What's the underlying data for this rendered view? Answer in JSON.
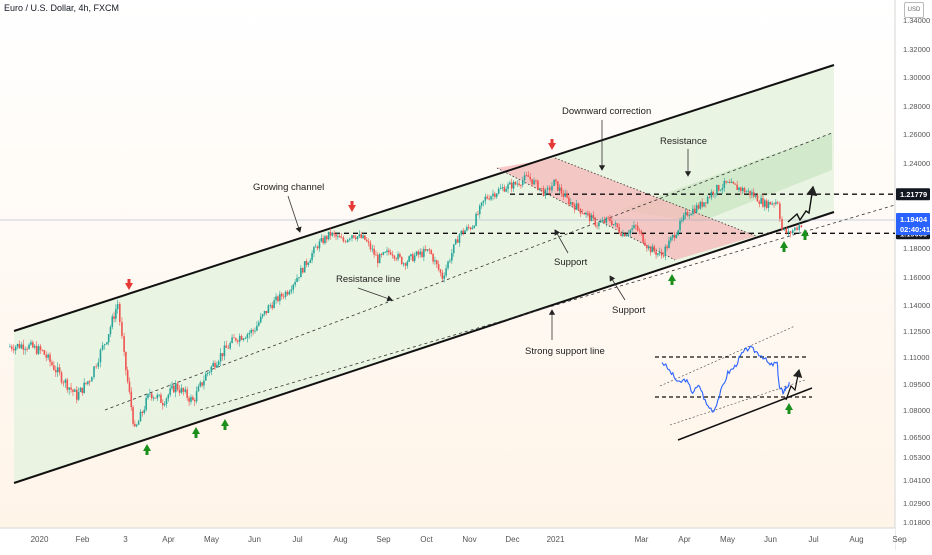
{
  "symbol_title": "Euro / U.S. Dollar, 4h, FXCM",
  "currency": "USD",
  "colors": {
    "candle_up": "#26a69a",
    "candle_down": "#ef5350",
    "channel_fill": "#e8f3e0",
    "correction_fill": "#f6b8b8",
    "upper_fill": "#cfe8c8",
    "arrow_down": "#e53935",
    "arrow_up": "#1b8f1b",
    "inset_line": "#2962ff",
    "price_badge": "#2962ff",
    "level_badge": "#131722"
  },
  "chart_data": {
    "type": "line",
    "title": "Euro / U.S. Dollar, 4h, FXCM",
    "ylim": [
      1.013,
      1.354
    ],
    "y_ticks": [
      "1.01800",
      "1.02900",
      "1.04100",
      "1.05300",
      "1.06500",
      "1.08000",
      "1.09500",
      "1.11000",
      "1.12500",
      "1.14000",
      "1.16000",
      "1.18000",
      "1.20000",
      "1.22000",
      "1.24000",
      "1.26000",
      "1.28000",
      "1.30000",
      "1.32000",
      "1.34000"
    ],
    "x_ticks": [
      "2020",
      "Feb",
      "3",
      "Apr",
      "May",
      "Jun",
      "Jul",
      "Aug",
      "Sep",
      "Oct",
      "Nov",
      "Dec",
      "2021",
      "Mar",
      "Apr",
      "May",
      "Jun",
      "Jul",
      "Aug",
      "Sep"
    ],
    "x_tick_t": [
      0.5,
      1.5,
      2.5,
      3.5,
      4.5,
      5.5,
      6.5,
      7.5,
      8.5,
      9.5,
      10.5,
      11.5,
      12.5,
      14.5,
      15.5,
      16.5,
      17.5,
      18.5,
      19.5,
      20.5
    ],
    "series": [
      {
        "t": [
          0,
          0.4,
          0.8,
          1.2,
          1.6,
          1.9,
          2.1,
          2.3,
          2.55,
          2.7,
          2.95,
          3.3,
          3.6,
          3.9,
          4.3,
          4.6,
          4.9,
          5.3,
          5.7,
          6.1,
          6.5,
          6.9,
          7.2,
          7.5,
          7.8,
          8.0,
          8.3,
          8.6,
          8.9,
          9.2,
          9.5,
          9.8,
          10.1,
          10.5,
          10.8,
          11.1,
          11.5,
          11.8,
          12.1,
          12.5,
          12.7,
          13.0,
          13.4,
          13.7,
          14.0,
          14.3,
          14.6,
          14.9,
          15.2,
          15.5,
          15.8,
          16.1,
          16.4,
          16.7,
          17.0,
          17.3,
          17.6,
          17.9,
          18.0,
          18.15,
          18.3,
          18.45
        ],
        "close": [
          1.116,
          1.117,
          1.113,
          1.1,
          1.088,
          1.098,
          1.11,
          1.121,
          1.141,
          1.11,
          1.068,
          1.09,
          1.085,
          1.094,
          1.085,
          1.1,
          1.11,
          1.121,
          1.125,
          1.14,
          1.15,
          1.168,
          1.182,
          1.19,
          1.185,
          1.19,
          1.186,
          1.172,
          1.178,
          1.17,
          1.175,
          1.178,
          1.16,
          1.19,
          1.196,
          1.215,
          1.222,
          1.225,
          1.23,
          1.218,
          1.226,
          1.214,
          1.205,
          1.197,
          1.2,
          1.19,
          1.195,
          1.18,
          1.175,
          1.19,
          1.205,
          1.21,
          1.22,
          1.225,
          1.222,
          1.218,
          1.211,
          1.213,
          1.193,
          1.19,
          1.194,
          1.197
        ]
      }
    ],
    "levels": [
      {
        "label": "1.21779",
        "value": 1.21779
      },
      {
        "label": "1.19050",
        "value": 1.1905
      }
    ],
    "current_price": {
      "label": "1.19404",
      "countdown": "02:40:41"
    },
    "annotations": [
      "Growing channel",
      "Resistance line",
      "Strong support line",
      "Downward correction",
      "Resistance",
      "Support",
      "Support"
    ]
  }
}
